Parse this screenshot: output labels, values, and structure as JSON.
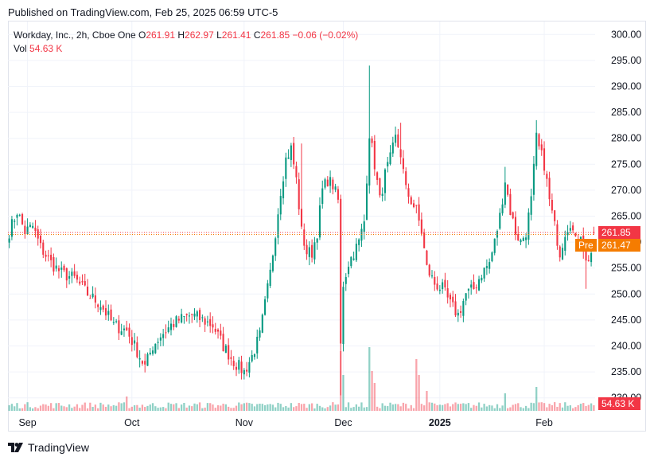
{
  "header": {
    "published": "Published on TradingView.com, Feb 25, 2025 06:59 UTC-5"
  },
  "legend": {
    "symbol": "Workday, Inc., 2h, Cboe One",
    "o_key": "O",
    "o_val": "261.91",
    "h_key": "H",
    "h_val": "262.97",
    "l_key": "L",
    "l_val": "261.41",
    "c_key": "C",
    "c_val": "261.85",
    "change": "−0.06 (−0.02%)",
    "vol_key": "Vol",
    "vol_val": "54.63 K"
  },
  "price_tags": {
    "last": "261.85",
    "pre_label": "Pre",
    "pre_price": "261.47",
    "volume": "54.63 K"
  },
  "footer": {
    "brand": "TradingView"
  },
  "colors": {
    "up": "#089981",
    "down": "#f23645",
    "pre": "#f57c00",
    "grid": "#f0f3fa",
    "axis_text": "#131722"
  },
  "chart_data": {
    "type": "candlestick",
    "y_ticks": [
      "300.00",
      "295.00",
      "290.00",
      "285.00",
      "280.00",
      "275.00",
      "270.00",
      "265.00",
      "260.00",
      "255.00",
      "250.00",
      "245.00",
      "240.00",
      "235.00",
      "230.00"
    ],
    "ylim": [
      227.5,
      302.5
    ],
    "x_labels": [
      {
        "label": "Sep",
        "i": 7,
        "bold": false
      },
      {
        "label": "Oct",
        "i": 47,
        "bold": false
      },
      {
        "label": "Nov",
        "i": 90,
        "bold": false
      },
      {
        "label": "Dec",
        "i": 128,
        "bold": false
      },
      {
        "label": "2025",
        "i": 165,
        "bold": true
      },
      {
        "label": "Feb",
        "i": 205,
        "bold": false
      }
    ],
    "last_close": 261.85,
    "pre_price": 261.47,
    "anchors": [
      [
        0,
        262
      ],
      [
        3,
        266
      ],
      [
        6,
        262
      ],
      [
        9,
        263
      ],
      [
        12,
        259
      ],
      [
        16,
        256
      ],
      [
        20,
        254
      ],
      [
        25,
        253
      ],
      [
        30,
        250
      ],
      [
        35,
        248
      ],
      [
        40,
        244
      ],
      [
        45,
        243
      ],
      [
        48,
        240
      ],
      [
        52,
        236
      ],
      [
        55,
        240
      ],
      [
        58,
        242
      ],
      [
        62,
        244
      ],
      [
        65,
        245
      ],
      [
        70,
        246
      ],
      [
        74,
        245
      ],
      [
        78,
        244
      ],
      [
        82,
        240
      ],
      [
        86,
        237
      ],
      [
        90,
        235
      ],
      [
        93,
        238
      ],
      [
        96,
        242
      ],
      [
        98,
        248
      ],
      [
        100,
        254
      ],
      [
        102,
        262
      ],
      [
        104,
        270
      ],
      [
        106,
        276
      ],
      [
        108,
        278
      ],
      [
        110,
        272
      ],
      [
        112,
        262
      ],
      [
        114,
        258
      ],
      [
        116,
        258
      ],
      [
        118,
        262
      ],
      [
        120,
        270
      ],
      [
        122,
        272
      ],
      [
        124,
        271
      ],
      [
        126,
        268
      ],
      [
        127,
        240
      ],
      [
        128,
        252
      ],
      [
        130,
        256
      ],
      [
        132,
        258
      ],
      [
        134,
        260
      ],
      [
        136,
        264
      ],
      [
        138,
        281
      ],
      [
        140,
        275
      ],
      [
        142,
        268
      ],
      [
        144,
        273
      ],
      [
        146,
        276
      ],
      [
        148,
        280
      ],
      [
        150,
        277
      ],
      [
        152,
        270
      ],
      [
        154,
        268
      ],
      [
        156,
        266
      ],
      [
        158,
        262
      ],
      [
        160,
        255
      ],
      [
        163,
        252
      ],
      [
        166,
        251
      ],
      [
        169,
        248
      ],
      [
        172,
        246
      ],
      [
        175,
        250
      ],
      [
        178,
        251
      ],
      [
        181,
        254
      ],
      [
        184,
        256
      ],
      [
        186,
        260
      ],
      [
        188,
        265
      ],
      [
        190,
        272
      ],
      [
        192,
        266
      ],
      [
        194,
        262
      ],
      [
        196,
        260
      ],
      [
        198,
        262
      ],
      [
        200,
        268
      ],
      [
        202,
        280
      ],
      [
        203,
        278
      ],
      [
        205,
        275
      ],
      [
        207,
        268
      ],
      [
        209,
        263
      ],
      [
        211,
        258
      ],
      [
        213,
        262
      ],
      [
        215,
        264
      ],
      [
        217,
        260
      ],
      [
        219,
        262
      ],
      [
        221,
        256
      ],
      [
        223,
        258
      ],
      [
        224,
        262
      ]
    ],
    "spikes": [
      {
        "i": 127,
        "low": 230.5
      },
      {
        "i": 128,
        "low": 257.0
      },
      {
        "i": 138,
        "high": 294.0
      },
      {
        "i": 202,
        "high": 283.5
      },
      {
        "i": 221,
        "low": 251.0
      },
      {
        "i": 112,
        "high": 279.0
      },
      {
        "i": 150,
        "high": 283.0
      },
      {
        "i": 190,
        "high": 274.5
      }
    ],
    "volume_spikes": [
      {
        "i": 127,
        "v": 75
      },
      {
        "i": 128,
        "v": 45
      },
      {
        "i": 138,
        "v": 80
      },
      {
        "i": 139,
        "v": 50
      },
      {
        "i": 140,
        "v": 35
      },
      {
        "i": 156,
        "v": 65
      },
      {
        "i": 157,
        "v": 45
      },
      {
        "i": 160,
        "v": 25
      },
      {
        "i": 202,
        "v": 30
      },
      {
        "i": 190,
        "v": 22
      },
      {
        "i": 45,
        "v": 18
      }
    ]
  }
}
